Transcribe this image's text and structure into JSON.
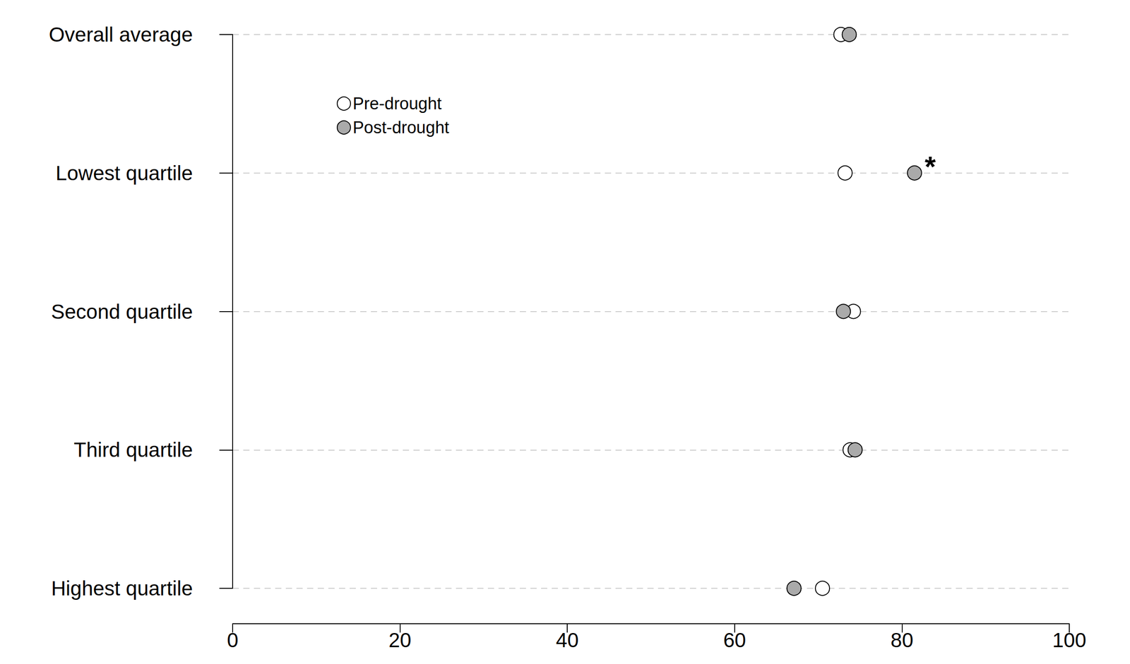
{
  "chart_data": {
    "type": "dot",
    "orientation": "horizontal",
    "categories": [
      "Overall average",
      "Lowest quartile",
      "Second quartile",
      "Third quartile",
      "Highest quartile"
    ],
    "series": [
      {
        "name": "Pre-drought",
        "color": "#ffffff",
        "marker": "circle",
        "values": [
          72.7,
          73.2,
          74.2,
          73.8,
          70.5
        ]
      },
      {
        "name": "Post-drought",
        "color": "#aaaaaa",
        "marker": "circle",
        "values": [
          73.7,
          81.5,
          73.0,
          74.4,
          67.1
        ]
      }
    ],
    "xlim": [
      0,
      100
    ],
    "xticks": [
      0,
      20,
      40,
      60,
      80,
      100
    ],
    "grid": true,
    "legend": "upper left",
    "annotations": [
      {
        "text": "*",
        "category": "Lowest quartile",
        "series": "Post-drought"
      }
    ]
  }
}
